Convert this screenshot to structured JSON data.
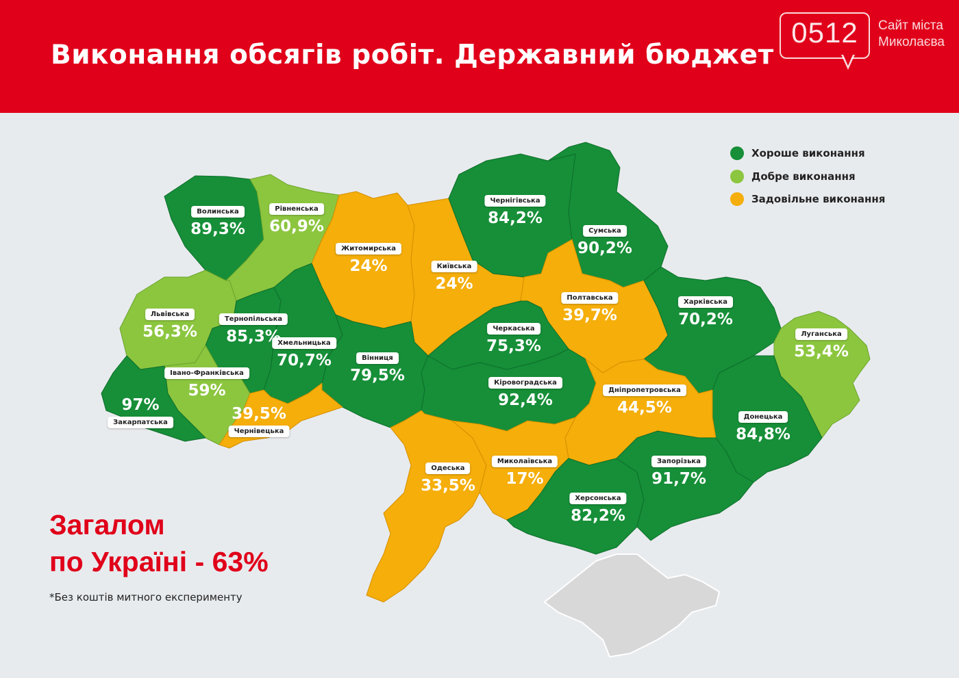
{
  "header": {
    "title": "Виконання обсягів робіт. Державний бюджет",
    "logo_number": "0512",
    "logo_line1": "Сайт міста",
    "logo_line2": "Миколаєва"
  },
  "colors": {
    "header_red": "#e0001a",
    "good": "#168f38",
    "fine": "#8cc63f",
    "satisfactory": "#f5ae0a",
    "crimea": "#d8d8d8"
  },
  "legend": [
    {
      "label": "Хороше виконання",
      "category": "good"
    },
    {
      "label": "Добре виконання",
      "category": "fine"
    },
    {
      "label": "Задовільне виконання",
      "category": "satisfactory"
    }
  ],
  "regions": [
    {
      "name": "Волинська",
      "value": "89,3%",
      "category": "good"
    },
    {
      "name": "Рівненська",
      "value": "60,9%",
      "category": "fine"
    },
    {
      "name": "Житомирська",
      "value": "24%",
      "category": "satisfactory"
    },
    {
      "name": "Київська",
      "value": "24%",
      "category": "satisfactory"
    },
    {
      "name": "Чернігівська",
      "value": "84,2%",
      "category": "good"
    },
    {
      "name": "Сумська",
      "value": "90,2%",
      "category": "good"
    },
    {
      "name": "Полтавська",
      "value": "39,7%",
      "category": "satisfactory"
    },
    {
      "name": "Харківська",
      "value": "70,2%",
      "category": "good"
    },
    {
      "name": "Луганська",
      "value": "53,4%",
      "category": "fine"
    },
    {
      "name": "Львівська",
      "value": "56,3%",
      "category": "fine"
    },
    {
      "name": "Тернопільська",
      "value": "85,3%",
      "category": "good"
    },
    {
      "name": "Хмельницька",
      "value": "70,7%",
      "category": "good"
    },
    {
      "name": "Вінниця",
      "value": "79,5%",
      "category": "good"
    },
    {
      "name": "Черкаська",
      "value": "75,3%",
      "category": "good"
    },
    {
      "name": "Кіровоградська",
      "value": "92,4%",
      "category": "good"
    },
    {
      "name": "Дніпропетровська",
      "value": "44,5%",
      "category": "satisfactory"
    },
    {
      "name": "Донецька",
      "value": "84,8%",
      "category": "good"
    },
    {
      "name": "Івано-Франківська",
      "value": "59%",
      "category": "fine"
    },
    {
      "name": "Закарпатська",
      "value": "97%",
      "category": "good"
    },
    {
      "name": "Чернівецька",
      "value": "39,5%",
      "category": "satisfactory"
    },
    {
      "name": "Одеська",
      "value": "33,5%",
      "category": "satisfactory"
    },
    {
      "name": "Миколаївська",
      "value": "17%",
      "category": "satisfactory"
    },
    {
      "name": "Херсонська",
      "value": "82,2%",
      "category": "good"
    },
    {
      "name": "Запорізька",
      "value": "91,7%",
      "category": "good"
    }
  ],
  "total": {
    "line1": "Загалом",
    "line2": "по Україні - 63%"
  },
  "note": "*Без коштів митного експерименту"
}
